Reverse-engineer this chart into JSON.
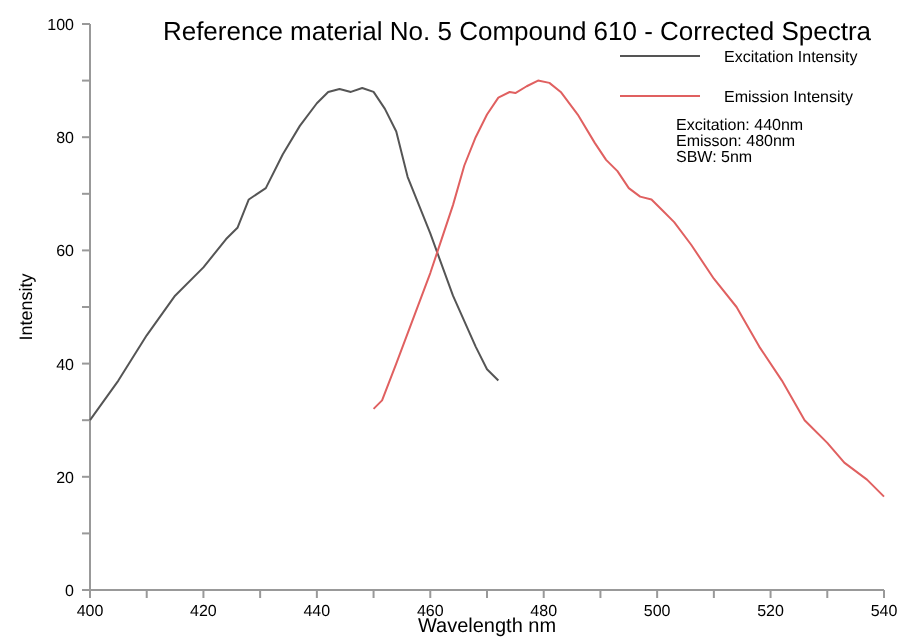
{
  "chart_data": {
    "type": "line",
    "title": "Reference material No. 5  Compound 610 - Corrected Spectra",
    "xlabel": "Wavelength nm",
    "ylabel": "Intensity",
    "xlim": [
      400,
      540
    ],
    "xticks": [
      400,
      {
        "value": 410,
        "label": null
      },
      420,
      {
        "value": 430,
        "label": null
      },
      440,
      {
        "value": 450,
        "label": null
      },
      460,
      {
        "value": 470,
        "label": null
      },
      480,
      {
        "value": 490,
        "label": null
      },
      500,
      {
        "value": 510,
        "label": null
      },
      520,
      {
        "value": 530,
        "label": null
      },
      540
    ],
    "ylim": [
      0,
      100
    ],
    "yticks": [
      0,
      {
        "value": 10,
        "label": null
      },
      20,
      {
        "value": 30,
        "label": null
      },
      40,
      {
        "value": 50,
        "label": null
      },
      60,
      {
        "value": 70,
        "label": null
      },
      80,
      {
        "value": 90,
        "label": null
      },
      100
    ],
    "grid": false,
    "legend": "top right",
    "annotations": [
      "Excitation: 440nm\nEmisson: 480nm\nSBW: 5nm"
    ],
    "series": [
      {
        "name": "Excitation Intensity",
        "color": "#555555",
        "x": [
          400,
          405,
          410,
          415,
          420,
          424,
          426,
          428,
          431,
          434,
          437,
          440,
          442,
          444,
          446,
          448,
          450,
          452,
          454,
          456,
          460,
          464,
          468,
          470,
          472
        ],
        "values": [
          30,
          37,
          45,
          52,
          57,
          62,
          64,
          69,
          71,
          77,
          82,
          86,
          88,
          88.5,
          88,
          88.7,
          88,
          85,
          81,
          73,
          63,
          52,
          43,
          39,
          37
        ]
      },
      {
        "name": "Emission Intensity",
        "color": "#e06060",
        "x": [
          450,
          451.5,
          454,
          457,
          460,
          462,
          464,
          466,
          468,
          470,
          472,
          474,
          475,
          477,
          479,
          481,
          483,
          486,
          489,
          491,
          493,
          495,
          497,
          499,
          501,
          503,
          506,
          510,
          514,
          518,
          522,
          526,
          530,
          533,
          537,
          540
        ],
        "values": [
          32,
          33.5,
          40,
          48,
          56,
          62,
          68,
          75,
          80,
          84,
          87,
          88,
          87.8,
          89,
          90,
          89.6,
          88,
          84,
          79,
          76,
          74,
          71,
          69.5,
          69,
          67,
          65,
          61,
          55,
          50,
          43,
          37,
          30,
          26,
          22.5,
          19.5,
          16.5
        ]
      }
    ]
  }
}
